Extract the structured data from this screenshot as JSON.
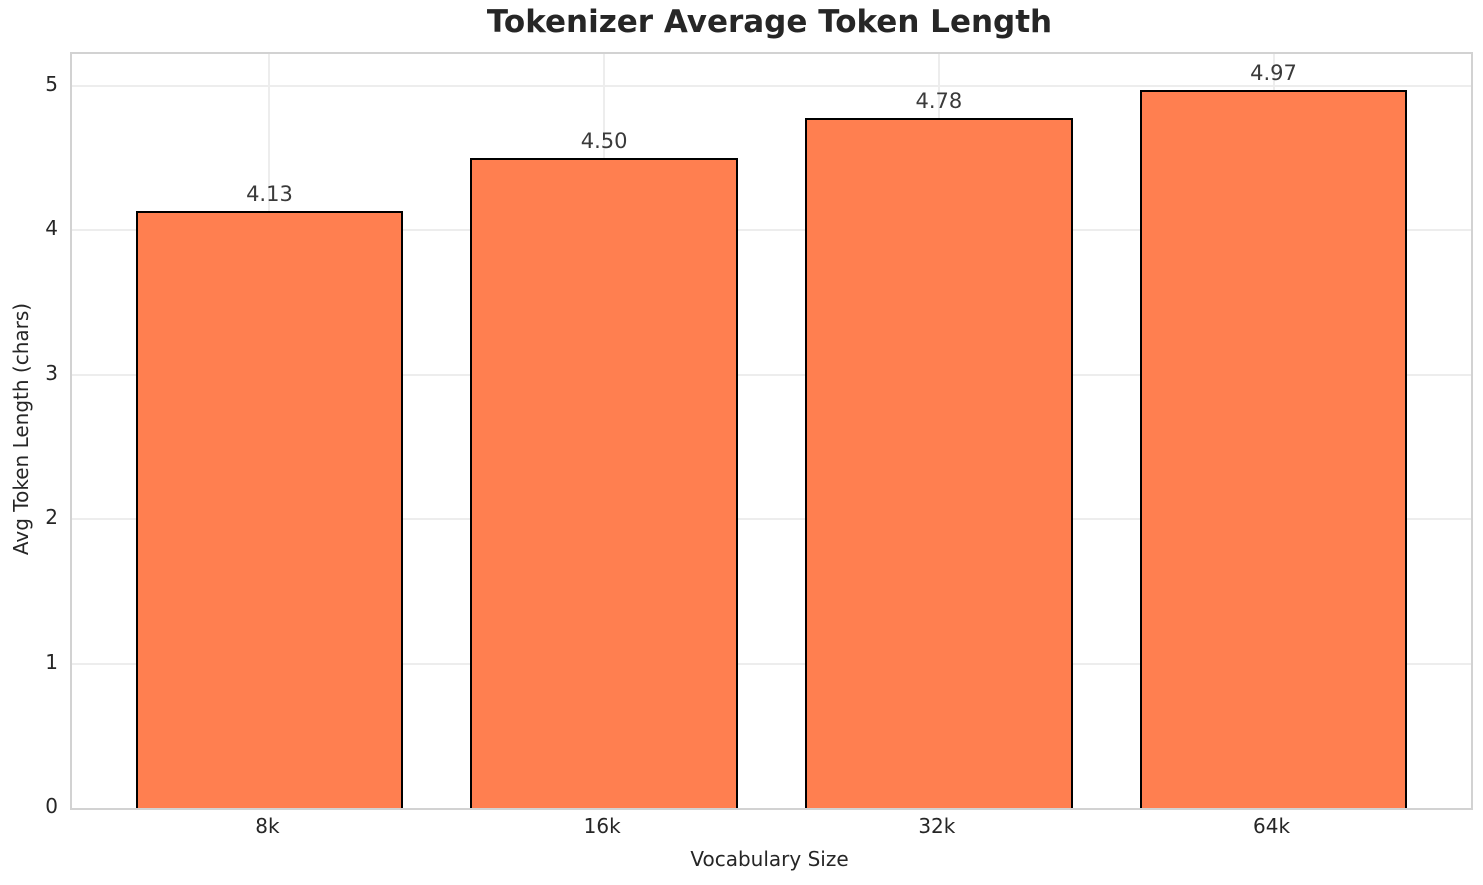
{
  "chart_data": {
    "type": "bar",
    "title": "Tokenizer Average Token Length",
    "xlabel": "Vocabulary Size",
    "ylabel": "Avg Token Length (chars)",
    "categories": [
      "8k",
      "16k",
      "32k",
      "64k"
    ],
    "values": [
      4.13,
      4.5,
      4.78,
      4.97
    ],
    "value_labels": [
      "4.13",
      "4.50",
      "4.78",
      "4.97"
    ],
    "yticks": [
      0,
      1,
      2,
      3,
      4,
      5
    ],
    "ylim": [
      0,
      5.22
    ],
    "grid": true,
    "legend": "none",
    "colors": {
      "bar_fill": "#FF7F50",
      "bar_edge": "#000000",
      "grid": "#EDEDED",
      "spine": "#D2D2D2",
      "text": "#262626",
      "background": "#FFFFFF"
    }
  }
}
